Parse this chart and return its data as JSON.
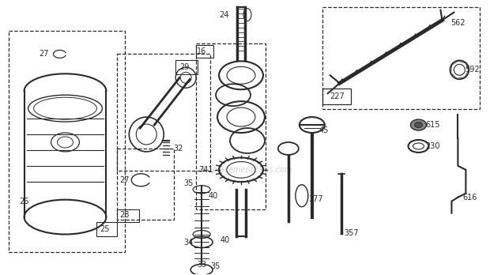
{
  "bg_color": "#ffffff",
  "line_color": "#2a2a2a",
  "watermark": "eReplacementParts.com",
  "figsize": [
    6.2,
    3.48
  ],
  "dpi": 100
}
